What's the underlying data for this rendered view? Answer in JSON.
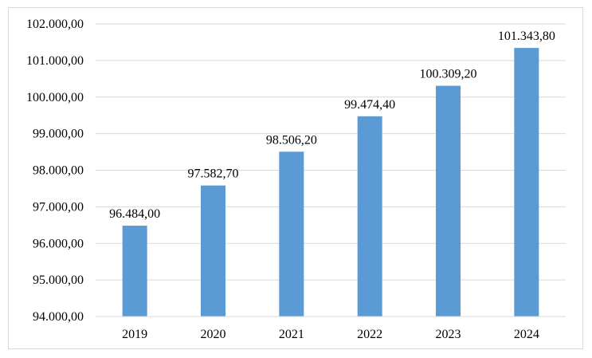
{
  "chart_data": {
    "type": "bar",
    "categories": [
      "2019",
      "2020",
      "2021",
      "2022",
      "2023",
      "2024"
    ],
    "values": [
      96484.0,
      97582.7,
      98506.2,
      99474.4,
      100309.2,
      101343.8
    ],
    "data_labels": [
      "96.484,00",
      "97.582,70",
      "98.506,20",
      "99.474,40",
      "100.309,20",
      "101.343,80"
    ],
    "y_ticks": [
      94000,
      95000,
      96000,
      97000,
      98000,
      99000,
      100000,
      101000,
      102000
    ],
    "y_tick_labels": [
      "94.000,00",
      "95.000,00",
      "96.000,00",
      "97.000,00",
      "98.000,00",
      "99.000,00",
      "100.000,00",
      "101.000,00",
      "102.000,00"
    ],
    "ylim": [
      94000,
      102000
    ],
    "title": "",
    "xlabel": "",
    "ylabel": "",
    "grid": true,
    "legend": "none",
    "bar_color": "#5b9bd5",
    "grid_color": "#d9d9d9"
  }
}
